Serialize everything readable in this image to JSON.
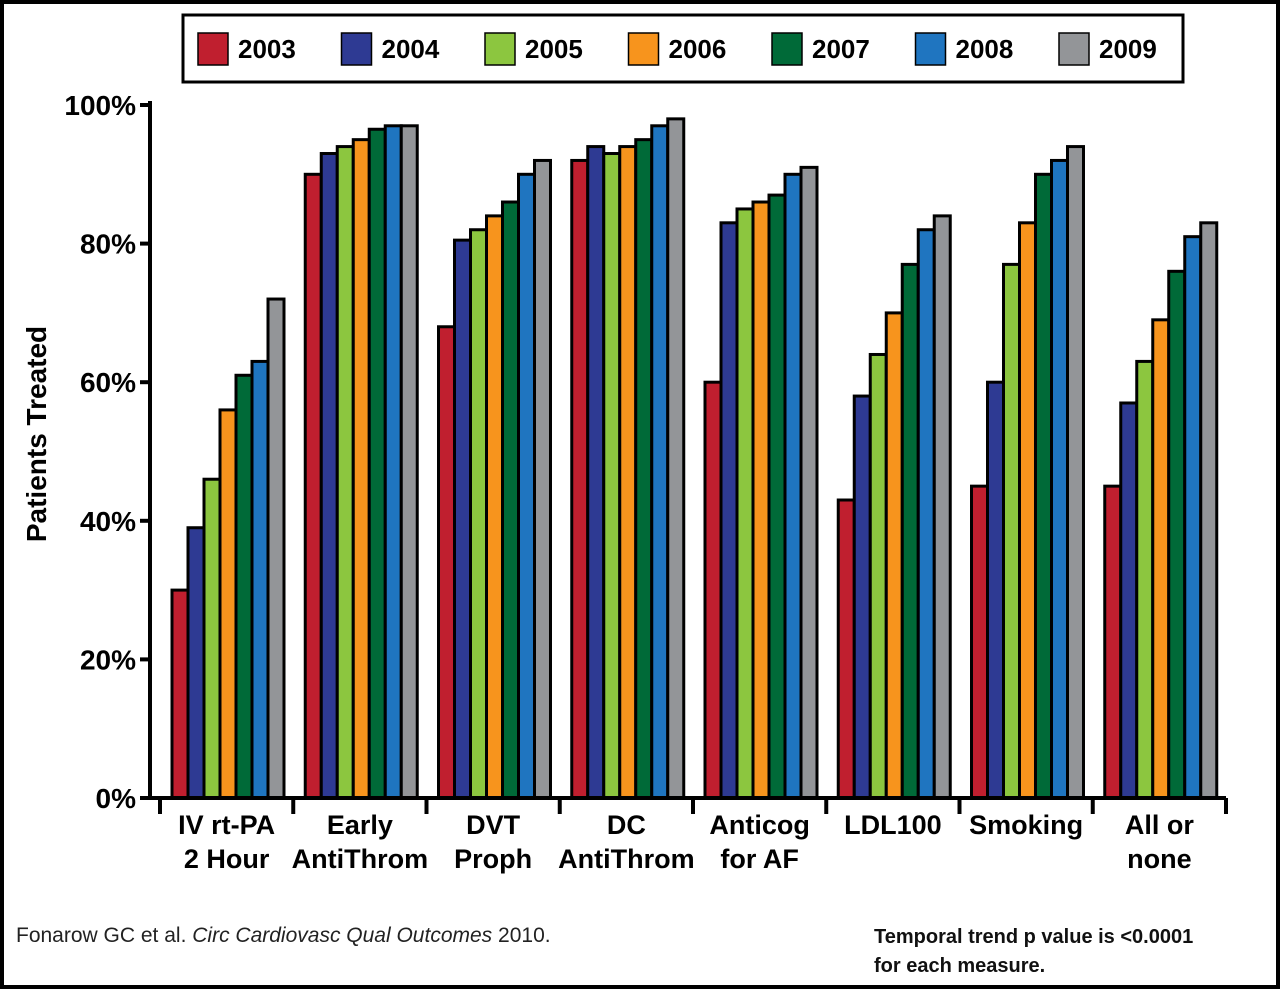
{
  "chart_data": {
    "type": "bar",
    "ylabel": "Patients Treated",
    "ylim": [
      0,
      100
    ],
    "yticks": [
      "0%",
      "20%",
      "40%",
      "60%",
      "80%",
      "100%"
    ],
    "categories": [
      [
        "IV rt-PA",
        "2 Hour"
      ],
      [
        "Early",
        "AntiThrom"
      ],
      [
        "DVT",
        "Proph"
      ],
      [
        "DC",
        "AntiThrom"
      ],
      [
        "Anticog",
        "for AF"
      ],
      [
        "LDL100",
        ""
      ],
      [
        "Smoking",
        ""
      ],
      [
        "All or",
        "none"
      ]
    ],
    "legend_placement": "top",
    "grid": false,
    "series": [
      {
        "name": "2003",
        "color": "#c01f2f",
        "values": [
          30,
          90,
          68,
          92,
          60,
          43,
          45,
          45
        ]
      },
      {
        "name": "2004",
        "color": "#2e3a93",
        "values": [
          39,
          93,
          80.5,
          94,
          83,
          58,
          60,
          57
        ]
      },
      {
        "name": "2005",
        "color": "#8cc63f",
        "values": [
          46,
          94,
          82,
          93,
          85,
          64,
          77,
          63
        ]
      },
      {
        "name": "2006",
        "color": "#f7941d",
        "values": [
          56,
          95,
          84,
          94,
          86,
          70,
          83,
          69
        ]
      },
      {
        "name": "2007",
        "color": "#006a38",
        "values": [
          61,
          96.5,
          86,
          95,
          87,
          77,
          90,
          76
        ]
      },
      {
        "name": "2008",
        "color": "#1f75c0",
        "values": [
          63,
          97,
          90,
          97,
          90,
          82,
          92,
          81
        ]
      },
      {
        "name": "2009",
        "color": "#939598",
        "values": [
          72,
          97,
          92,
          98,
          91,
          84,
          94,
          83
        ]
      }
    ]
  },
  "footer": {
    "citation_author": "Fonarow GC et al.",
    "citation_journal": "Circ Cardiovasc Qual Outcomes",
    "citation_year": "2010.",
    "note_line1": "Temporal trend p value is <0.0001",
    "note_line2": "for each measure."
  }
}
